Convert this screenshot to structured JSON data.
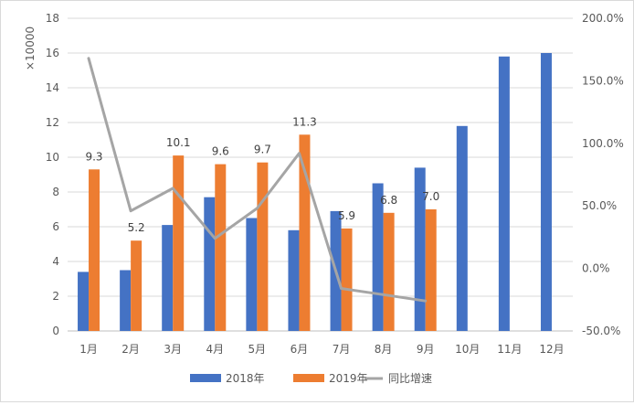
{
  "chart_data": {
    "type": "bar",
    "categories": [
      "1月",
      "2月",
      "3月",
      "4月",
      "5月",
      "6月",
      "7月",
      "8月",
      "9月",
      "10月",
      "11月",
      "12月"
    ],
    "y_unit_label": "×10000",
    "ylim": [
      0,
      18
    ],
    "y_ticks": [
      "0",
      "2",
      "4",
      "6",
      "8",
      "10",
      "12",
      "14",
      "16",
      "18"
    ],
    "y2lim": [
      -50,
      200
    ],
    "y2_ticks": [
      "-50.0%",
      "0.0%",
      "50.0%",
      "100.0%",
      "150.0%",
      "200.0%"
    ],
    "series": [
      {
        "name": "2018年",
        "type": "bar",
        "color": "#4472C4",
        "values": [
          3.4,
          3.5,
          6.1,
          7.7,
          6.5,
          5.8,
          6.9,
          8.5,
          9.4,
          11.8,
          15.8,
          16.0
        ]
      },
      {
        "name": "2019年",
        "type": "bar",
        "color": "#ED7D31",
        "values": [
          9.3,
          5.2,
          10.1,
          9.6,
          9.7,
          11.3,
          5.9,
          6.8,
          7.0,
          null,
          null,
          null
        ],
        "data_labels": [
          "9.3",
          "5.2",
          "10.1",
          "9.6",
          "9.7",
          "11.3",
          "5.9",
          "6.8",
          "7.0",
          "",
          "",
          ""
        ]
      },
      {
        "name": "同比增速",
        "type": "line",
        "axis": "right",
        "color": "#A5A5A5",
        "values": [
          168,
          46,
          64,
          24,
          48,
          92,
          -16,
          -21,
          -26,
          null,
          null,
          null
        ]
      }
    ],
    "grid": true,
    "legend": "bottom"
  }
}
